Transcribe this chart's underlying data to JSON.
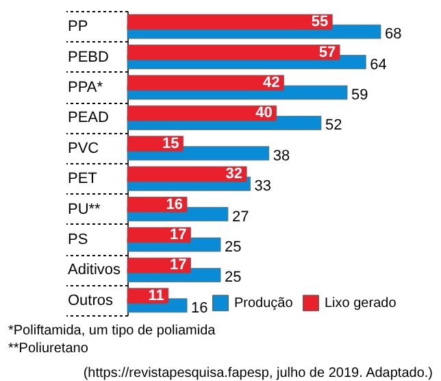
{
  "chart_data": {
    "type": "bar",
    "orientation": "horizontal",
    "categories": [
      "PP",
      "PEBD",
      "PPA*",
      "PEAD",
      "PVC",
      "PET",
      "PU**",
      "PS",
      "Aditivos",
      "Outros"
    ],
    "series": [
      {
        "name": "Produção",
        "color": "#0a8bd6",
        "values": [
          68,
          64,
          59,
          52,
          38,
          33,
          27,
          25,
          25,
          16
        ]
      },
      {
        "name": "Lixo gerado",
        "color": "#e8212c",
        "values": [
          55,
          57,
          42,
          40,
          15,
          32,
          16,
          17,
          17,
          11
        ]
      }
    ],
    "data_labels": true,
    "legend": "bottom right",
    "annotations": [
      "*Poliftamida, um tipo de poliamida",
      "**Poliuretano",
      "(https://revistapesquisa.fapesp, julho de 2019. Adaptado.)"
    ]
  }
}
